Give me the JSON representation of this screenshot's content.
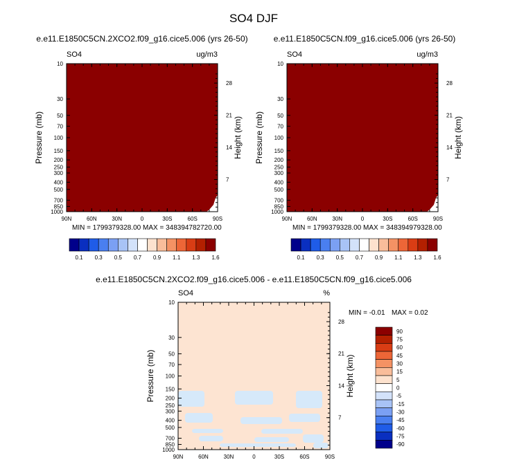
{
  "page_title": "SO4 DJF",
  "colors": {
    "field_fill": "#8b0000",
    "diff_background": "#fde4d2",
    "diff_negative": "#d6e9fa"
  },
  "chart_data": [
    {
      "type": "heatmap",
      "title": "e.e11.E1850C5CN.2XCO2.f09_g16.cice5.006 (yrs 26-50)",
      "left_label": "SO4",
      "units": "ug/m3",
      "xlabel": "",
      "ylabel": "Pressure (mb)",
      "y2label": "Height (km)",
      "x_ticks": [
        "90N",
        "60N",
        "30N",
        "0",
        "30S",
        "60S",
        "90S"
      ],
      "y_ticks": [
        "10",
        "30",
        "50",
        "70",
        "100",
        "150",
        "200",
        "250",
        "300",
        "400",
        "500",
        "700",
        "850",
        "1000"
      ],
      "y2_ticks": [
        "28",
        "21",
        "14",
        "7"
      ],
      "y_scale": "log",
      "ylim": [
        1000,
        10
      ],
      "min_text": "MIN = 1799379328.00",
      "max_text": "MAX = 348394782720.00",
      "colorbar_labels": [
        "0.1",
        "0.3",
        "0.5",
        "0.7",
        "0.9",
        "1.1",
        "1.3",
        "1.6"
      ],
      "colorbar_colors": [
        "#00008b",
        "#0a2fc0",
        "#1f5ce8",
        "#4a7ff0",
        "#7ba0f3",
        "#a8c3f6",
        "#d3e2fa",
        "#ffffff",
        "#fde2ce",
        "#f9bd9a",
        "#f49264",
        "#ed6637",
        "#d93d14",
        "#b32000",
        "#8b0000"
      ]
    },
    {
      "type": "heatmap",
      "title": "e.e11.E1850C5CN.f09_g16.cice5.006 (yrs 26-50)",
      "left_label": "SO4",
      "units": "ug/m3",
      "xlabel": "",
      "ylabel": "Pressure (mb)",
      "y2label": "Height (km)",
      "x_ticks": [
        "90N",
        "60N",
        "30N",
        "0",
        "30S",
        "60S",
        "90S"
      ],
      "y_ticks": [
        "10",
        "30",
        "50",
        "70",
        "100",
        "150",
        "200",
        "250",
        "300",
        "400",
        "500",
        "700",
        "850",
        "1000"
      ],
      "y2_ticks": [
        "28",
        "21",
        "14",
        "7"
      ],
      "y_scale": "log",
      "ylim": [
        1000,
        10
      ],
      "min_text": "MIN = 1799379328.00",
      "max_text": "MAX = 348394979328.00",
      "colorbar_labels": [
        "0.1",
        "0.3",
        "0.5",
        "0.7",
        "0.9",
        "1.1",
        "1.3",
        "1.6"
      ],
      "colorbar_colors": [
        "#00008b",
        "#0a2fc0",
        "#1f5ce8",
        "#4a7ff0",
        "#7ba0f3",
        "#a8c3f6",
        "#d3e2fa",
        "#ffffff",
        "#fde2ce",
        "#f9bd9a",
        "#f49264",
        "#ed6637",
        "#d93d14",
        "#b32000",
        "#8b0000"
      ]
    },
    {
      "type": "heatmap",
      "title": "e.e11.E1850C5CN.2XCO2.f09_g16.cice5.006 - e.e11.E1850C5CN.f09_g16.cice5.006",
      "left_label": "SO4",
      "units": "%",
      "xlabel": "",
      "ylabel": "Pressure (mb)",
      "y2label": "Height (km)",
      "x_ticks": [
        "90N",
        "60N",
        "30N",
        "0",
        "30S",
        "60S",
        "90S"
      ],
      "y_ticks": [
        "10",
        "30",
        "50",
        "70",
        "100",
        "150",
        "200",
        "250",
        "300",
        "400",
        "500",
        "700",
        "850",
        "1000"
      ],
      "y2_ticks": [
        "28",
        "21",
        "14",
        "7"
      ],
      "y_scale": "log",
      "ylim": [
        1000,
        10
      ],
      "min_text": "MIN = -0.01",
      "max_text": "MAX = 0.02",
      "colorbar_labels": [
        "90",
        "75",
        "60",
        "45",
        "30",
        "15",
        "5",
        "0",
        "-5",
        "-15",
        "-30",
        "-45",
        "-60",
        "-75",
        "-90"
      ],
      "colorbar_colors": [
        "#8b0000",
        "#b32000",
        "#d93d14",
        "#ed6637",
        "#f49264",
        "#f9bd9a",
        "#fde2ce",
        "#ffffff",
        "#d3e2fa",
        "#a8c3f6",
        "#7ba0f3",
        "#4a7ff0",
        "#1f5ce8",
        "#0a2fc0",
        "#00008b"
      ]
    }
  ]
}
